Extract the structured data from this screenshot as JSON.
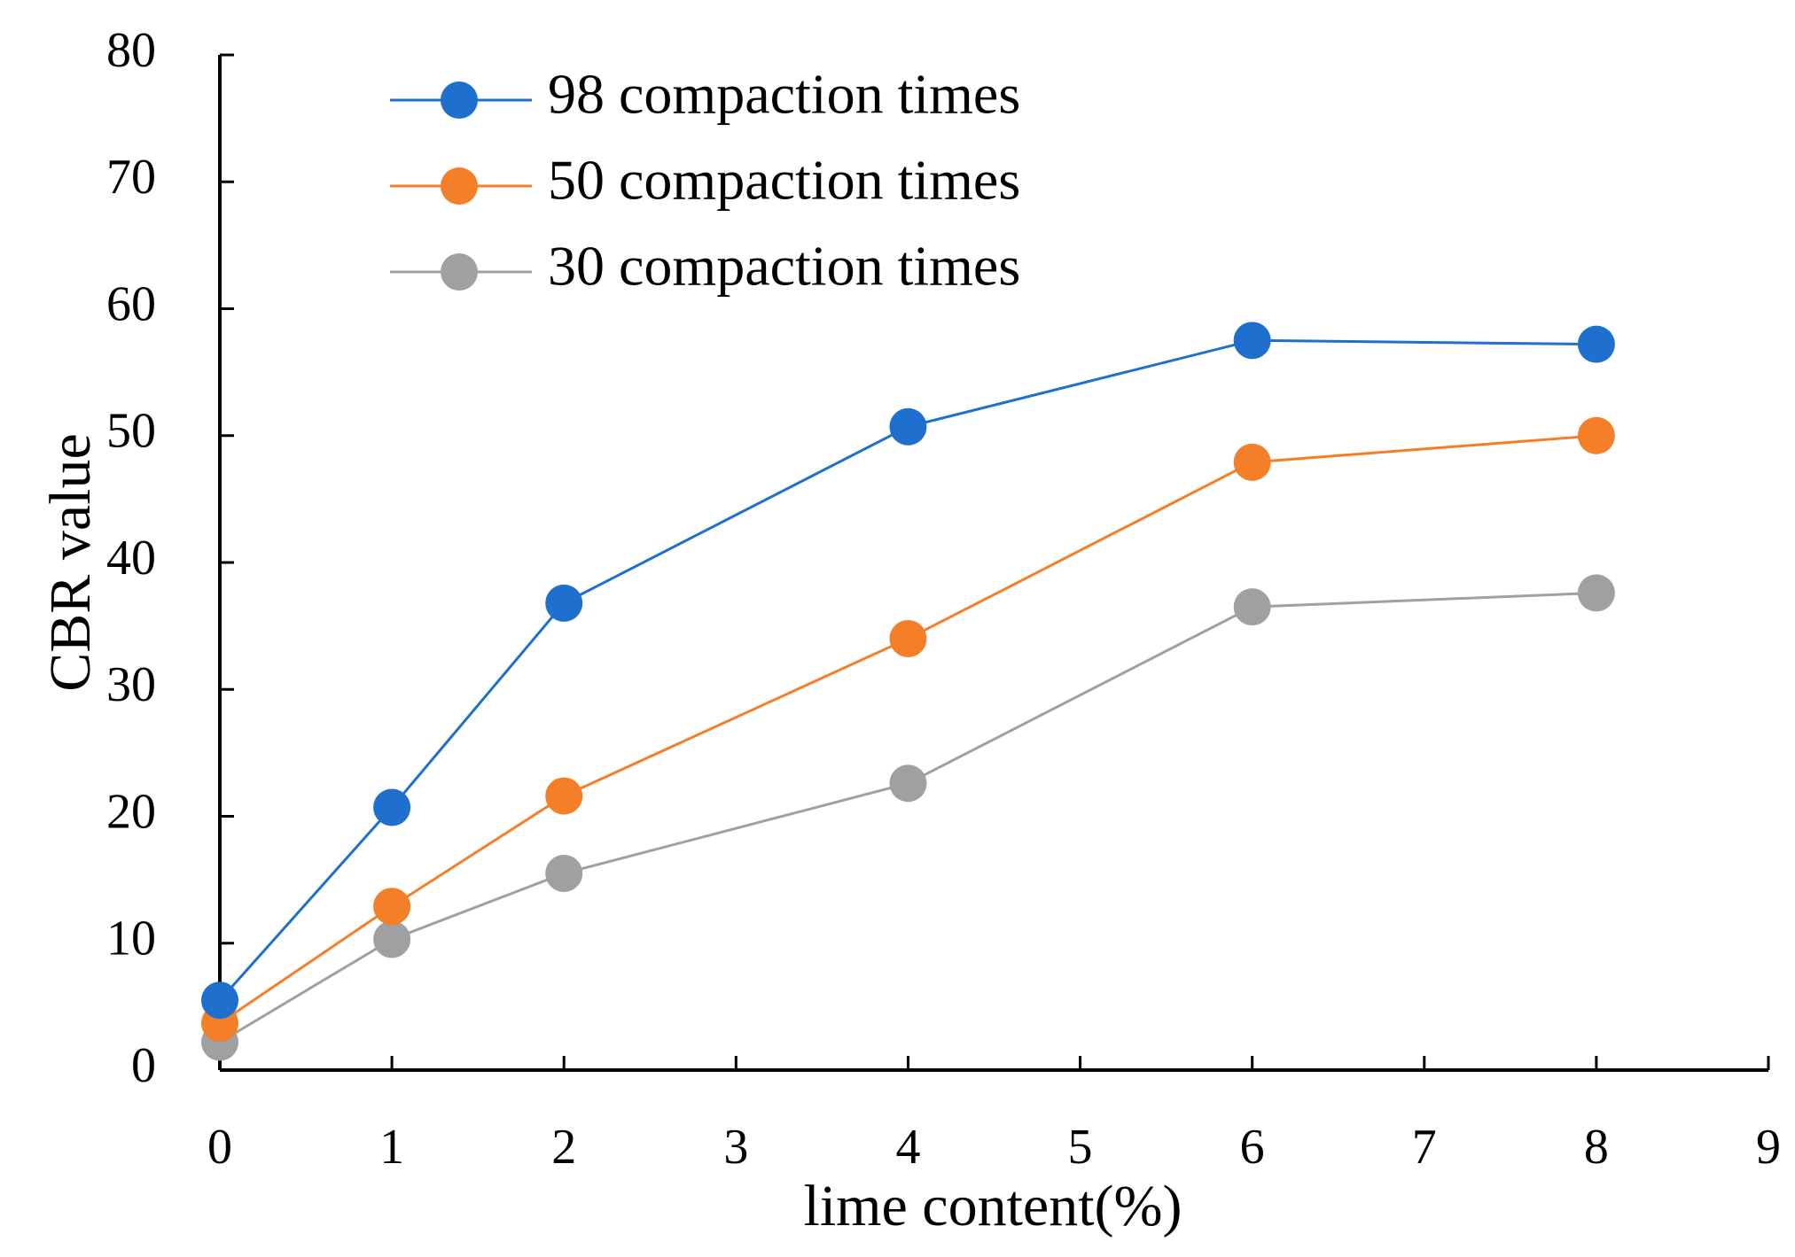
{
  "chart_data": {
    "type": "line",
    "title": "",
    "xlabel": "lime content(%)",
    "ylabel": "CBR value",
    "xlim": [
      0,
      9
    ],
    "ylim": [
      0,
      80
    ],
    "xticks": [
      0,
      1,
      2,
      3,
      4,
      5,
      6,
      7,
      8,
      9
    ],
    "yticks": [
      0,
      10,
      20,
      30,
      40,
      50,
      60,
      70,
      80
    ],
    "grid": false,
    "legend_position": "top-left",
    "x": [
      0,
      1,
      2,
      4,
      6,
      8
    ],
    "series": [
      {
        "name": "98 compaction times",
        "color": "#1E6FCE",
        "values": [
          5.5,
          20.7,
          36.8,
          50.7,
          57.5,
          57.2
        ]
      },
      {
        "name": "50 compaction times",
        "color": "#F47F28",
        "values": [
          3.7,
          12.9,
          21.6,
          34.0,
          47.9,
          50.0
        ]
      },
      {
        "name": "30 compaction times",
        "color": "#A0A0A0",
        "values": [
          2.2,
          10.3,
          15.5,
          22.6,
          36.5,
          37.6
        ]
      }
    ]
  }
}
